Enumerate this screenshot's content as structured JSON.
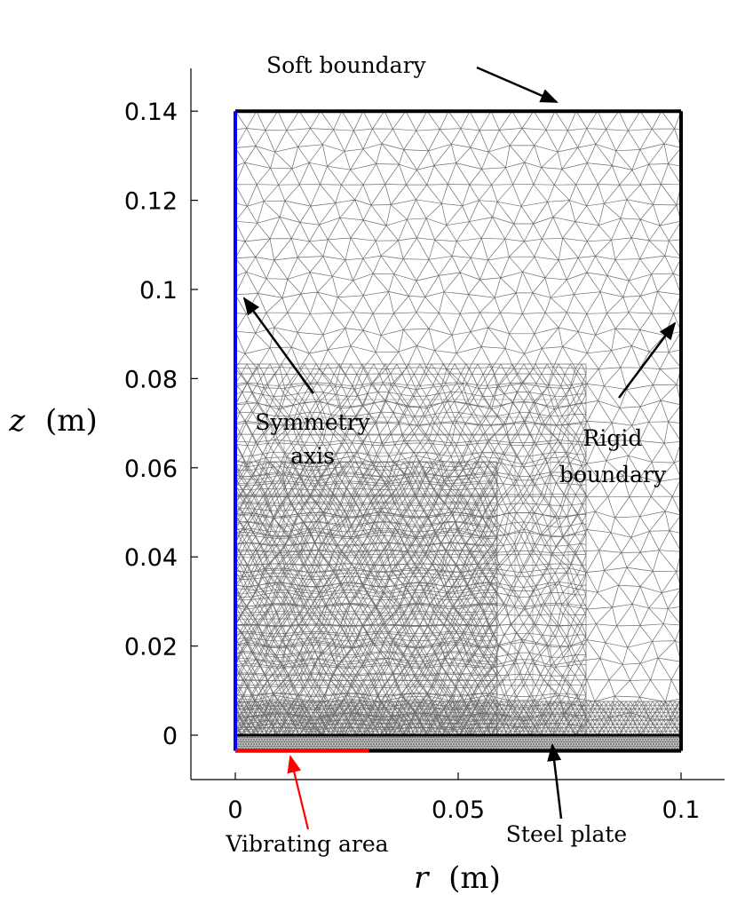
{
  "chart_data": {
    "type": "diagram",
    "x_axis": {
      "label_var": "r",
      "label_unit": "(m)",
      "range": [
        -0.01,
        0.11
      ],
      "ticks": [
        0,
        0.05,
        0.1
      ],
      "tick_labels": [
        "0",
        "0.05",
        "0.1"
      ]
    },
    "y_axis": {
      "label_var": "z",
      "label_unit": "(m)",
      "range": [
        -0.01,
        0.15
      ],
      "ticks": [
        0,
        0.02,
        0.04,
        0.06,
        0.08,
        0.1,
        0.12,
        0.14
      ],
      "tick_labels": [
        "0",
        "0.02",
        "0.04",
        "0.06",
        "0.08",
        "0.1",
        "0.12",
        "0.14"
      ]
    },
    "domain": {
      "r": [
        0,
        0.1
      ],
      "z": [
        -0.0035,
        0.14
      ]
    },
    "steel_plate_top_z": 0,
    "vibrating_area_r": [
      0,
      0.03
    ],
    "colors": {
      "symmetry_axis": "#0000ff",
      "vibrating_area": "#ff0000",
      "boundary": "#000000",
      "mesh": "#6e6e6e"
    },
    "annotations": [
      {
        "id": "soft",
        "lines": [
          "Soft boundary"
        ]
      },
      {
        "id": "symmetry",
        "lines": [
          "Symmetry",
          "axis"
        ]
      },
      {
        "id": "rigid",
        "lines": [
          "Rigid",
          "boundary"
        ]
      },
      {
        "id": "vibrating",
        "lines": [
          "Vibrating area"
        ]
      },
      {
        "id": "steel",
        "lines": [
          "Steel plate"
        ]
      }
    ]
  }
}
